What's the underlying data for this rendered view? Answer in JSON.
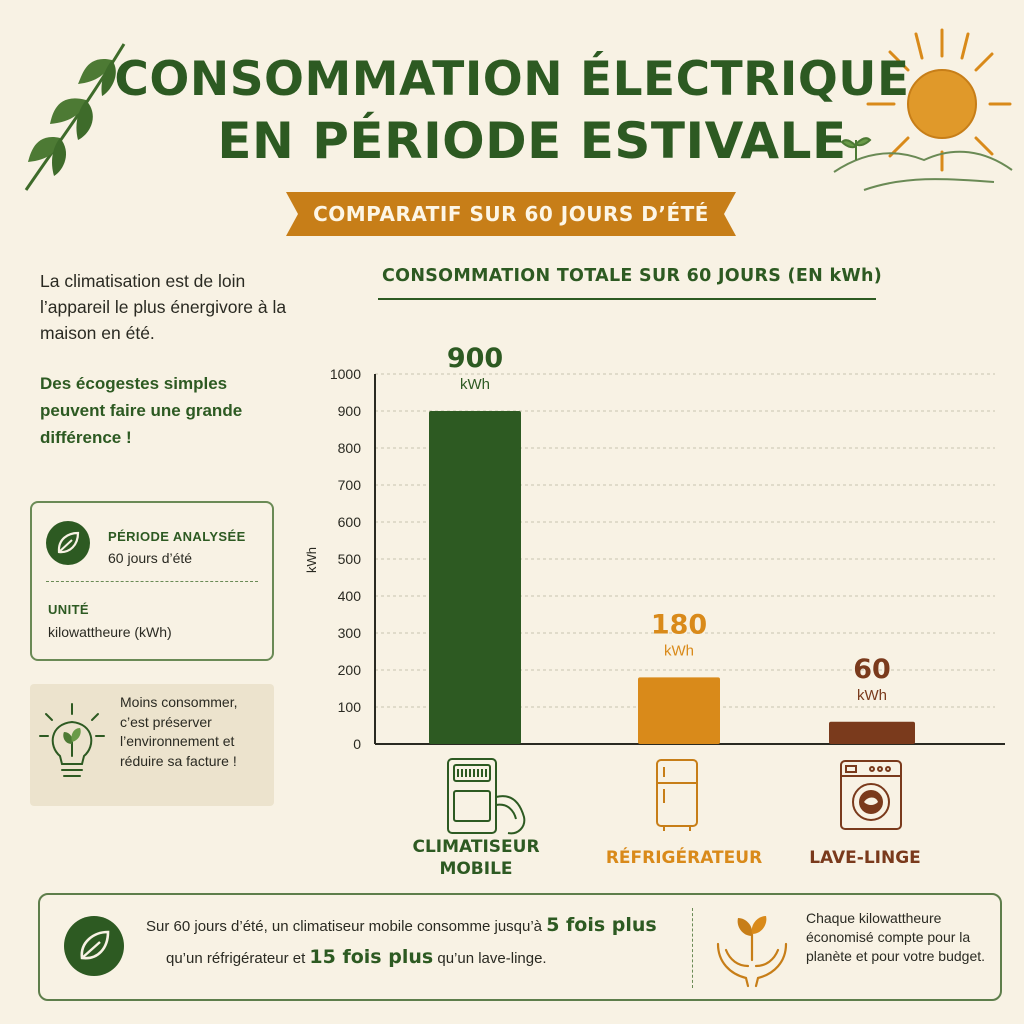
{
  "header": {
    "title_line1": "CONSOMMATION ÉLECTRIQUE",
    "title_line2": "EN PÉRIODE ESTIVALE",
    "subtitle": "COMPARATIF SUR 60 JOURS D’ÉTÉ"
  },
  "left": {
    "intro": "La climatisation est de loin l’appareil le plus énergivore à la maison en été.",
    "highlight": "Des écogestes simples peuvent faire une grande différence !",
    "info": {
      "period_label": "PÉRIODE ANALYSÉE",
      "period_value": "60 jours d’été",
      "unit_label": "UNITÉ",
      "unit_value": "kilowattheure (kWh)"
    },
    "tip": "Moins consommer, c’est préserver l’environnement et réduire sa facture !"
  },
  "chart_data": {
    "type": "bar",
    "title": "CONSOMMATION TOTALE SUR 60 JOURS (EN kWh)",
    "ylabel": "kWh",
    "ylim": [
      0,
      1000
    ],
    "yticks": [
      0,
      100,
      200,
      300,
      400,
      500,
      600,
      700,
      800,
      900,
      1000
    ],
    "grid": true,
    "categories": [
      "CLIMATISEUR MOBILE",
      "RÉFRIGÉRATEUR",
      "LAVE-LINGE"
    ],
    "values": [
      900,
      180,
      60
    ],
    "value_labels": [
      "900",
      "180",
      "60"
    ],
    "unit_label": "kWh",
    "colors": [
      "#2d5a22",
      "#d98a1a",
      "#7a3a1c"
    ]
  },
  "footer": {
    "left_part1": "Sur 60 jours d’été, un climatiseur mobile consomme jusqu’à",
    "left_em1": "5 fois plus",
    "left_part2": "qu’un réfrigérateur et",
    "left_em2": "15 fois plus",
    "left_part3": "qu’un lave-linge.",
    "right": "Chaque kilowattheure économisé compte pour la planète et pour votre budget."
  },
  "colors": {
    "background": "#f8f2e4",
    "primary_green": "#2d5a22",
    "accent_orange": "#d98a1a",
    "brown": "#7a3a1c"
  },
  "icons": [
    "leaf-branch",
    "sun",
    "hills",
    "leaf-icon",
    "lightbulb-icon",
    "air-conditioner-icon",
    "refrigerator-icon",
    "washing-machine-icon",
    "hands-plant-icon"
  ]
}
